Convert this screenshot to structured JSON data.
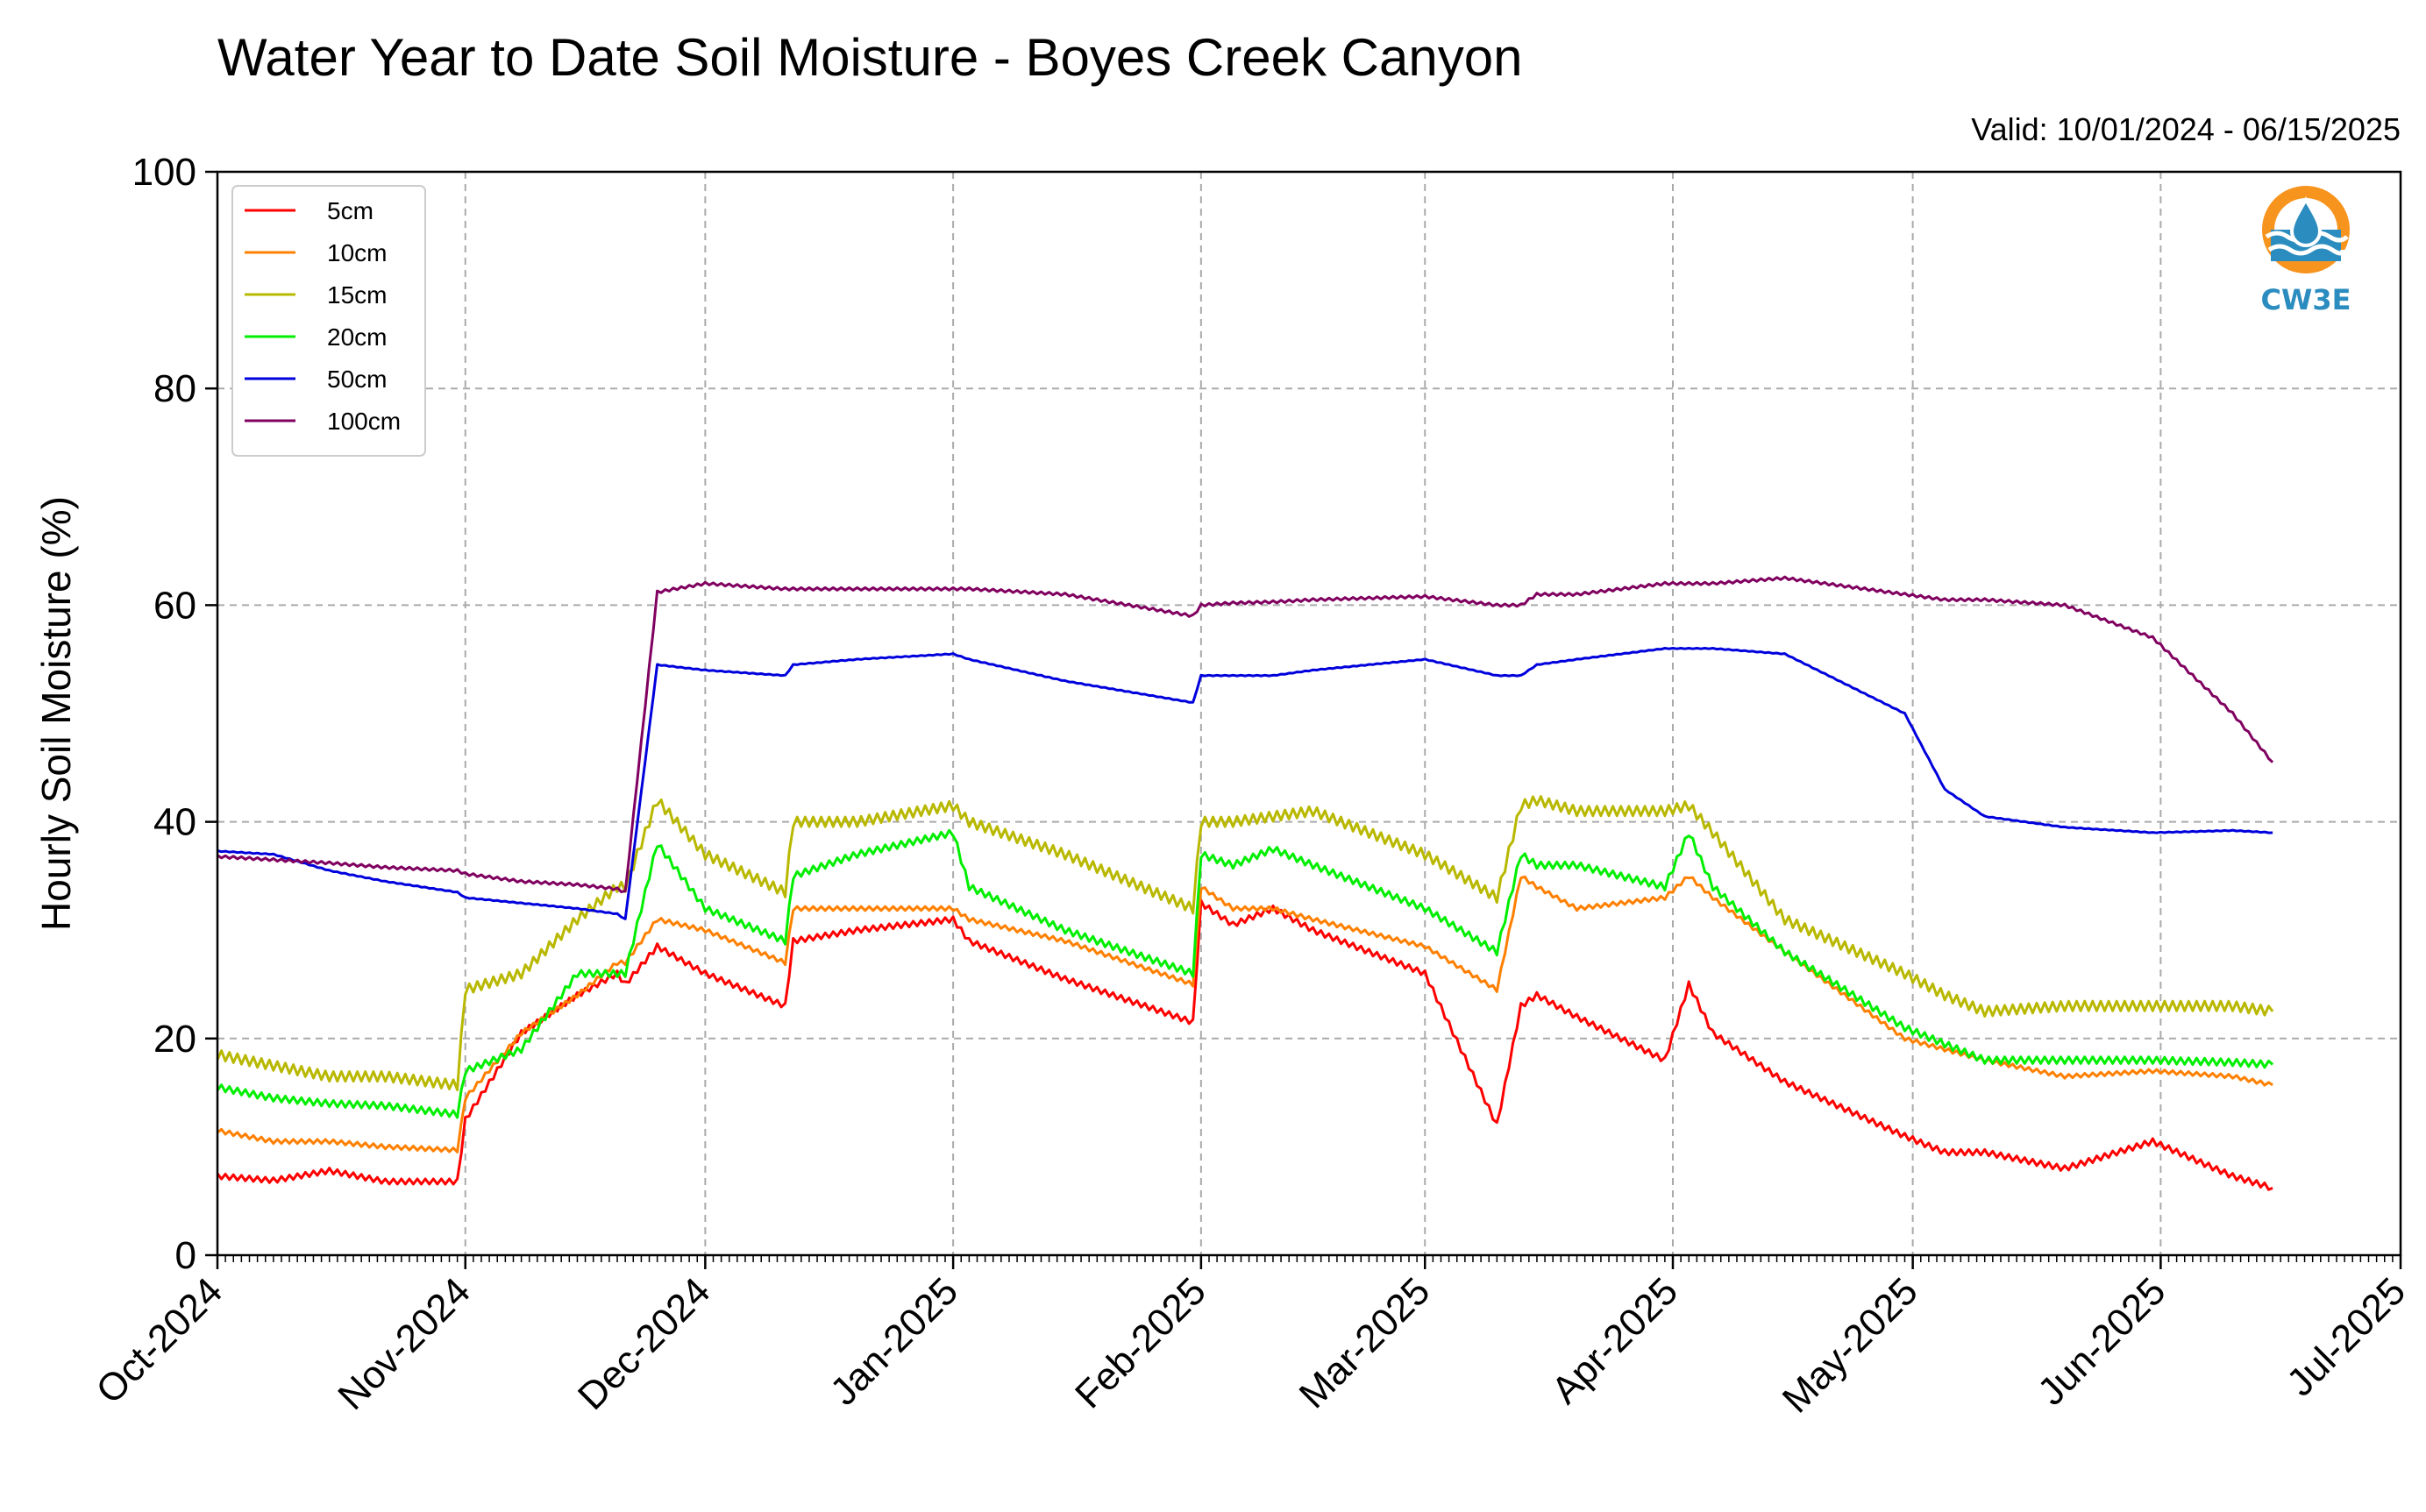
{
  "chart_data": {
    "type": "line",
    "title": "Water Year to Date Soil Moisture - Boyes Creek Canyon",
    "subtitle": "Valid: 10/01/2024 - 06/15/2025",
    "xlabel": "",
    "ylabel": "Hourly Soil Moisture (%)",
    "xlim": [
      "2024-10-01",
      "2025-07-01"
    ],
    "ylim": [
      0,
      100
    ],
    "yticks": [
      "0",
      "20",
      "40",
      "60",
      "80",
      "100"
    ],
    "xticks": [
      "Oct-2024",
      "Nov-2024",
      "Dec-2024",
      "Jan-2025",
      "Feb-2025",
      "Mar-2025",
      "Apr-2025",
      "May-2025",
      "Jun-2025",
      "Jul-2025"
    ],
    "grid": true,
    "legend_position": "top-left",
    "logo_text": "CW3E",
    "x": [
      "2024-10-01",
      "2024-10-08",
      "2024-10-15",
      "2024-10-22",
      "2024-10-31",
      "2024-11-01",
      "2024-11-08",
      "2024-11-15",
      "2024-11-20",
      "2024-11-21",
      "2024-11-25",
      "2024-12-01",
      "2024-12-11",
      "2024-12-12",
      "2024-12-20",
      "2025-01-01",
      "2025-01-03",
      "2025-01-15",
      "2025-01-31",
      "2025-02-01",
      "2025-02-05",
      "2025-02-10",
      "2025-02-15",
      "2025-03-01",
      "2025-03-10",
      "2025-03-13",
      "2025-03-15",
      "2025-03-20",
      "2025-03-31",
      "2025-04-03",
      "2025-04-06",
      "2025-04-15",
      "2025-04-30",
      "2025-05-05",
      "2025-05-10",
      "2025-05-20",
      "2025-05-31",
      "2025-06-10",
      "2025-06-15"
    ],
    "series": [
      {
        "name": "5cm",
        "color": "#ff0000",
        "values": [
          7.3,
          6.9,
          7.8,
          6.8,
          6.8,
          12.5,
          20.5,
          24,
          26,
          25,
          28.5,
          26,
          23,
          29,
          30,
          31,
          29,
          25.5,
          21.5,
          32.5,
          30.5,
          32,
          30,
          26,
          12,
          23,
          24,
          22,
          18,
          25,
          20.5,
          16,
          11,
          9.5,
          9.5,
          8,
          10.5,
          7.3,
          6.2
        ]
      },
      {
        "name": "10cm",
        "color": "#ff8000",
        "values": [
          11.5,
          10.5,
          10.5,
          10,
          9.7,
          14.5,
          20.5,
          24,
          27,
          27,
          31,
          30,
          27,
          32,
          32,
          32,
          31,
          29,
          25,
          34,
          32,
          32,
          31,
          28.5,
          24.5,
          35,
          34,
          32,
          33,
          35,
          33,
          28,
          20,
          19,
          18,
          16.5,
          17,
          16.5,
          15.7
        ]
      },
      {
        "name": "15cm",
        "color": "#b8b800",
        "values": [
          18.5,
          17.5,
          16.5,
          16.5,
          15.7,
          24.5,
          26,
          31,
          34,
          34,
          42,
          37,
          33.5,
          40,
          40,
          41.5,
          40,
          37,
          32,
          40,
          40,
          40.5,
          41,
          37,
          33,
          41.5,
          42,
          41,
          41,
          41.5,
          39,
          31,
          26,
          24,
          22.5,
          23,
          23,
          23,
          22.5
        ]
      },
      {
        "name": "20cm",
        "color": "#00ee00",
        "values": [
          15.5,
          14.5,
          14,
          13.8,
          13,
          17,
          19,
          26,
          26,
          26,
          38,
          32,
          29,
          35,
          37,
          39,
          34,
          30,
          26,
          37,
          36,
          37.5,
          36,
          32,
          28,
          37,
          36,
          36,
          34,
          39,
          34,
          28,
          21,
          19.5,
          18,
          18,
          18,
          17.8,
          17.6
        ]
      },
      {
        "name": "50cm",
        "color": "#0000dd",
        "values": [
          37.3,
          37,
          35.5,
          34.5,
          33.5,
          33,
          32.5,
          32,
          31.5,
          31,
          54.5,
          54,
          53.5,
          54.5,
          55,
          55.5,
          55,
          53,
          51,
          53.5,
          53.5,
          53.5,
          54,
          55,
          53.5,
          53.5,
          54.5,
          55,
          56,
          56,
          56,
          55.5,
          50,
          43,
          40.5,
          39.5,
          39,
          39.2,
          39
        ]
      },
      {
        "name": "100cm",
        "color": "#800060",
        "values": [
          36.8,
          36.5,
          36.2,
          35.8,
          35.5,
          35.2,
          34.5,
          34.2,
          33.8,
          33.5,
          61.2,
          62,
          61.5,
          61.5,
          61.5,
          61.5,
          61.5,
          61,
          59,
          60,
          60.2,
          60.3,
          60.5,
          60.8,
          60,
          60,
          61,
          61,
          62,
          62,
          62,
          62.5,
          61,
          60.5,
          60.5,
          60,
          57,
          50,
          45.5
        ]
      }
    ]
  }
}
